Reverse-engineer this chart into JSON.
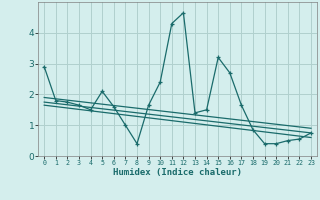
{
  "xlabel": "Humidex (Indice chaleur)",
  "background_color": "#d4eeed",
  "grid_color": "#b0d0ce",
  "line_color": "#1a6b6b",
  "x_values": [
    0,
    1,
    2,
    3,
    4,
    5,
    6,
    7,
    8,
    9,
    10,
    11,
    12,
    13,
    14,
    15,
    16,
    17,
    18,
    19,
    20,
    21,
    22,
    23
  ],
  "series1": [
    2.9,
    1.8,
    1.75,
    1.65,
    1.5,
    2.1,
    1.6,
    1.0,
    0.4,
    1.65,
    2.4,
    4.3,
    4.65,
    1.4,
    1.5,
    3.2,
    2.7,
    1.65,
    0.85,
    0.4,
    0.4,
    0.5,
    0.55,
    0.75
  ],
  "trend1_x": [
    0,
    23
  ],
  "trend1_y": [
    1.9,
    0.9
  ],
  "trend2_x": [
    0,
    23
  ],
  "trend2_y": [
    1.75,
    0.75
  ],
  "trend3_x": [
    0,
    23
  ],
  "trend3_y": [
    1.65,
    0.6
  ],
  "xlim": [
    -0.5,
    23.5
  ],
  "ylim": [
    0,
    5
  ],
  "yticks": [
    0,
    1,
    2,
    3,
    4
  ],
  "xtick_labels": [
    "0",
    "1",
    "2",
    "3",
    "4",
    "5",
    "6",
    "7",
    "8",
    "9",
    "10",
    "11",
    "12",
    "13",
    "14",
    "15",
    "16",
    "17",
    "18",
    "19",
    "20",
    "21",
    "22",
    "23"
  ]
}
